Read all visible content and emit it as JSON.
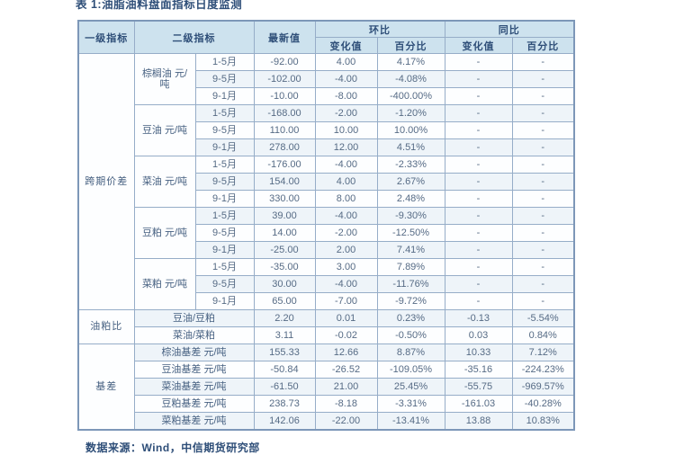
{
  "title": "表 1:油脂油料盘面指标日度监测",
  "footer": "数据来源：Wind，中信期货研究部",
  "colors": {
    "header_bg": "#cde2ee",
    "table_border": "#8ba5c2",
    "header_text": "#2e4e78",
    "body_text": "#566b85"
  },
  "table": {
    "headers": {
      "level1": "一级指标",
      "level2": "二级指标",
      "latest": "最新值",
      "mom": "环比",
      "yoy": "同比",
      "change": "变化值",
      "pct": "百分比"
    },
    "groups": [
      {
        "name": "跨期价差",
        "sub": [
          {
            "label": "棕榈油 元/吨",
            "rows": [
              {
                "month": "1-5月",
                "latest": "-92.00",
                "mom_chg": "4.00",
                "mom_pct": "4.17%",
                "yoy_chg": "-",
                "yoy_pct": "-"
              },
              {
                "month": "9-5月",
                "latest": "-102.00",
                "mom_chg": "-4.00",
                "mom_pct": "-4.08%",
                "yoy_chg": "-",
                "yoy_pct": "-"
              },
              {
                "month": "9-1月",
                "latest": "-10.00",
                "mom_chg": "-8.00",
                "mom_pct": "-400.00%",
                "yoy_chg": "-",
                "yoy_pct": "-"
              }
            ]
          },
          {
            "label": "豆油 元/吨",
            "rows": [
              {
                "month": "1-5月",
                "latest": "-168.00",
                "mom_chg": "-2.00",
                "mom_pct": "-1.20%",
                "yoy_chg": "-",
                "yoy_pct": "-"
              },
              {
                "month": "9-5月",
                "latest": "110.00",
                "mom_chg": "10.00",
                "mom_pct": "10.00%",
                "yoy_chg": "-",
                "yoy_pct": "-"
              },
              {
                "month": "9-1月",
                "latest": "278.00",
                "mom_chg": "12.00",
                "mom_pct": "4.51%",
                "yoy_chg": "-",
                "yoy_pct": "-"
              }
            ]
          },
          {
            "label": "菜油 元/吨",
            "rows": [
              {
                "month": "1-5月",
                "latest": "-176.00",
                "mom_chg": "-4.00",
                "mom_pct": "-2.33%",
                "yoy_chg": "-",
                "yoy_pct": "-"
              },
              {
                "month": "9-5月",
                "latest": "154.00",
                "mom_chg": "4.00",
                "mom_pct": "2.67%",
                "yoy_chg": "-",
                "yoy_pct": "-"
              },
              {
                "month": "9-1月",
                "latest": "330.00",
                "mom_chg": "8.00",
                "mom_pct": "2.48%",
                "yoy_chg": "-",
                "yoy_pct": "-"
              }
            ]
          },
          {
            "label": "豆粕 元/吨",
            "rows": [
              {
                "month": "1-5月",
                "latest": "39.00",
                "mom_chg": "-4.00",
                "mom_pct": "-9.30%",
                "yoy_chg": "-",
                "yoy_pct": "-"
              },
              {
                "month": "9-5月",
                "latest": "14.00",
                "mom_chg": "-2.00",
                "mom_pct": "-12.50%",
                "yoy_chg": "-",
                "yoy_pct": "-"
              },
              {
                "month": "9-1月",
                "latest": "-25.00",
                "mom_chg": "2.00",
                "mom_pct": "7.41%",
                "yoy_chg": "-",
                "yoy_pct": "-"
              }
            ]
          },
          {
            "label": "菜粕 元/吨",
            "rows": [
              {
                "month": "1-5月",
                "latest": "-35.00",
                "mom_chg": "3.00",
                "mom_pct": "7.89%",
                "yoy_chg": "-",
                "yoy_pct": "-"
              },
              {
                "month": "9-5月",
                "latest": "30.00",
                "mom_chg": "-4.00",
                "mom_pct": "-11.76%",
                "yoy_chg": "-",
                "yoy_pct": "-"
              },
              {
                "month": "9-1月",
                "latest": "65.00",
                "mom_chg": "-7.00",
                "mom_pct": "-9.72%",
                "yoy_chg": "-",
                "yoy_pct": "-"
              }
            ]
          }
        ]
      },
      {
        "name": "油粕比",
        "rows": [
          {
            "label": "豆油/豆粕",
            "latest": "2.20",
            "mom_chg": "0.01",
            "mom_pct": "0.23%",
            "yoy_chg": "-0.13",
            "yoy_pct": "-5.54%"
          },
          {
            "label": "菜油/菜粕",
            "latest": "3.11",
            "mom_chg": "-0.02",
            "mom_pct": "-0.50%",
            "yoy_chg": "0.03",
            "yoy_pct": "0.84%"
          }
        ]
      },
      {
        "name": "基差",
        "rows": [
          {
            "label": "棕油基差 元/吨",
            "latest": "155.33",
            "mom_chg": "12.66",
            "mom_pct": "8.87%",
            "yoy_chg": "10.33",
            "yoy_pct": "7.12%"
          },
          {
            "label": "豆油基差 元/吨",
            "latest": "-50.84",
            "mom_chg": "-26.52",
            "mom_pct": "-109.05%",
            "yoy_chg": "-35.16",
            "yoy_pct": "-224.23%"
          },
          {
            "label": "菜油基差 元/吨",
            "latest": "-61.50",
            "mom_chg": "21.00",
            "mom_pct": "25.45%",
            "yoy_chg": "-55.75",
            "yoy_pct": "-969.57%"
          },
          {
            "label": "豆粕基差 元/吨",
            "latest": "238.73",
            "mom_chg": "-8.18",
            "mom_pct": "-3.31%",
            "yoy_chg": "-161.03",
            "yoy_pct": "-40.28%"
          },
          {
            "label": "菜粕基差 元/吨",
            "latest": "142.06",
            "mom_chg": "-22.00",
            "mom_pct": "-13.41%",
            "yoy_chg": "13.88",
            "yoy_pct": "10.83%"
          }
        ]
      }
    ]
  }
}
